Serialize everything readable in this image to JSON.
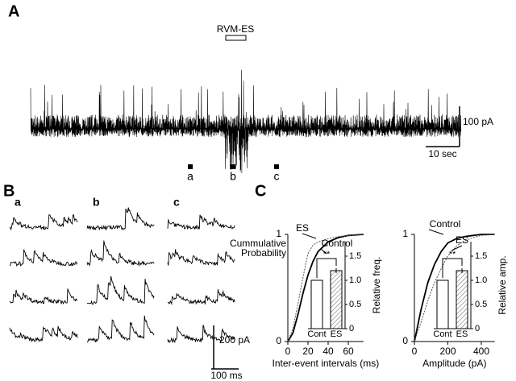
{
  "panel_labels": [
    "A",
    "B",
    "C"
  ],
  "panel_a": {
    "stim_label": "RVM-ES",
    "scale_y": "100 pA",
    "scale_x": "10 sec",
    "markers": [
      "a",
      "b",
      "c"
    ]
  },
  "panel_b": {
    "columns": [
      "a",
      "b",
      "c"
    ],
    "scale_y": "200 pA",
    "scale_x": "100 ms"
  },
  "chart_data": [
    {
      "type": "line",
      "xlabel": "Inter-event intervals (ms)",
      "ylabel": [
        "Cummulative",
        "Probability"
      ],
      "xlim": [
        0,
        75
      ],
      "xticks": [
        0,
        20,
        40,
        60
      ],
      "ylim": [
        0,
        1
      ],
      "yticks": [
        0,
        1
      ],
      "x": [
        0,
        5,
        10,
        15,
        20,
        25,
        30,
        40,
        50,
        60,
        75
      ],
      "series": [
        {
          "name": "Control",
          "color": "#000000",
          "values": [
            0,
            0.08,
            0.25,
            0.45,
            0.62,
            0.75,
            0.84,
            0.93,
            0.97,
            0.99,
            1
          ]
        },
        {
          "name": "ES",
          "color": "#555555",
          "values": [
            0,
            0.12,
            0.35,
            0.6,
            0.82,
            0.9,
            0.93,
            0.96,
            0.98,
            0.99,
            1
          ]
        }
      ]
    },
    {
      "type": "bar",
      "ylabel": "Relative freq.",
      "categories": [
        "Cont",
        "ES"
      ],
      "values": [
        1,
        1.2
      ],
      "errors": [
        null,
        0.05
      ],
      "ylim": [
        0,
        1.8
      ],
      "yticks": [
        0,
        0.5,
        {
          "value": 1,
          "label": "1.0"
        },
        1.5
      ],
      "significance": "**"
    },
    {
      "type": "line",
      "xlabel": "Amplitude (pA)",
      "ylim": [
        0,
        1
      ],
      "yticks": [
        0,
        1
      ],
      "xlim": [
        0,
        480
      ],
      "xticks": [
        0,
        200,
        400
      ],
      "x": [
        0,
        40,
        80,
        120,
        160,
        200,
        250,
        300,
        350,
        400,
        480
      ],
      "series": [
        {
          "name": "Control",
          "color": "#000000",
          "values": [
            0,
            0.3,
            0.55,
            0.72,
            0.84,
            0.92,
            0.96,
            0.98,
            0.99,
            1,
            1
          ]
        },
        {
          "name": "ES",
          "color": "#555555",
          "values": [
            0,
            0.18,
            0.38,
            0.55,
            0.68,
            0.8,
            0.89,
            0.94,
            0.97,
            0.99,
            1
          ]
        }
      ]
    },
    {
      "type": "bar",
      "ylabel": "Relative amp.",
      "categories": [
        "Cont",
        "ES"
      ],
      "values": [
        1,
        1.2
      ],
      "errors": [
        null,
        0.05
      ],
      "ylim": [
        0,
        1.8
      ],
      "yticks": [
        0,
        0.5,
        {
          "value": 1,
          "label": "1.0"
        },
        1.5
      ],
      "significance": "**"
    }
  ]
}
